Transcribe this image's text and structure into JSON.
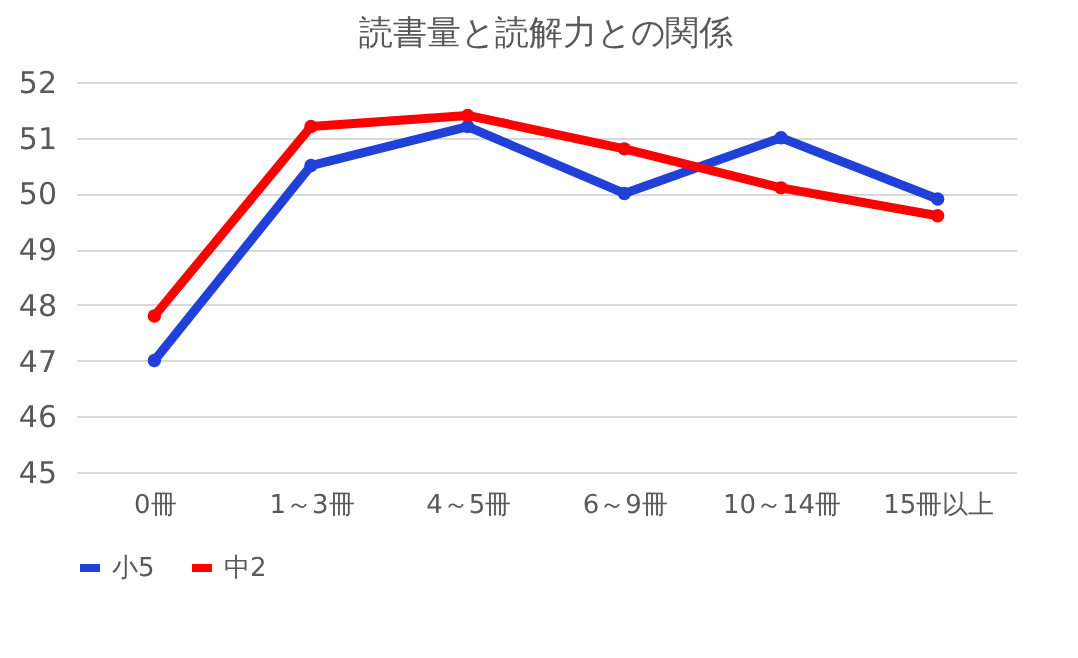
{
  "chart_data": {
    "type": "line",
    "title": "読書量と読解力との関係",
    "categories": [
      "0冊",
      "1～3冊",
      "4～5冊",
      "6～9冊",
      "10～14冊",
      "15冊以上"
    ],
    "series": [
      {
        "name": "小5",
        "color": "#2040d8",
        "values": [
          47.0,
          50.5,
          51.2,
          50.0,
          51.0,
          49.9
        ]
      },
      {
        "name": "中2",
        "color": "#ff0000",
        "values": [
          47.8,
          51.2,
          51.4,
          50.8,
          50.1,
          49.6
        ]
      }
    ],
    "ylim": [
      45,
      52
    ],
    "yticks": [
      45,
      46,
      47,
      48,
      49,
      50,
      51,
      52
    ],
    "grid": "y",
    "legend": "bottom",
    "marker": "circle",
    "line_style": "solid"
  }
}
